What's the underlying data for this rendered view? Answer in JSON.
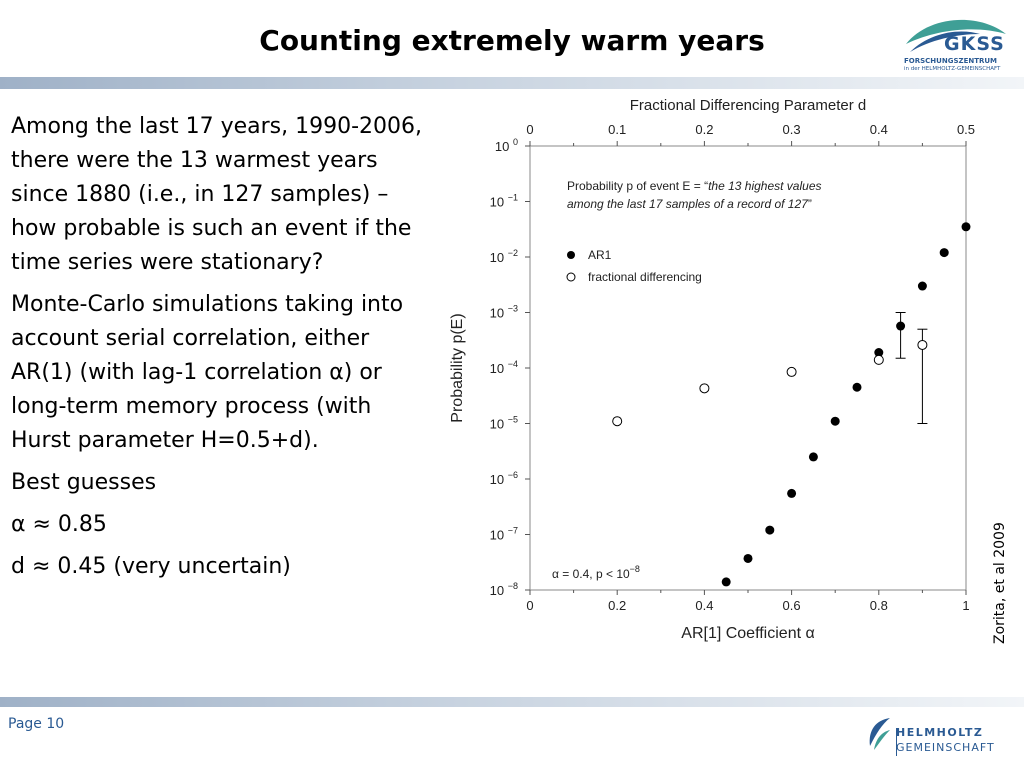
{
  "slide": {
    "title": "Counting extremely warm years",
    "page_label": "Page 10",
    "credit": "Zorita, et al 2009"
  },
  "logos": {
    "gkss": {
      "name": "GKSS",
      "line1": "FORSCHUNGSZENTRUM",
      "line2": "in der HELMHOLTZ-GEMEINSCHAFT"
    },
    "helmholtz": {
      "line1": "HELMHOLTZ",
      "line2": "GEMEINSCHAFT"
    }
  },
  "body": {
    "p1": "Among the last 17 years, 1990-2006, there were the 13 warmest years since 1880 (i.e., in 127 samples) – how probable is such an event if the time series were stationary?",
    "p2": "Monte-Carlo simulations taking into account serial correlation, either AR(1) (with lag-1 correlation α) or long-term memory process (with Hurst parameter H=0.5+d).",
    "p3": "Best guesses",
    "p4": "α ≈ 0.85",
    "p5": "d ≈ 0.45 (very uncertain)"
  },
  "chart_data": {
    "type": "scatter",
    "title": "Fractional Differencing Parameter d",
    "xlabel": "AR[1] Coefficient α",
    "ylabel": "Probability p(E)",
    "x_scale": "linear",
    "y_scale": "log",
    "xlim": [
      0,
      1
    ],
    "ylim": [
      1e-08,
      1
    ],
    "x_ticks": [
      "0",
      "0.2",
      "0.4",
      "0.6",
      "0.8",
      "1"
    ],
    "x_tick_values": [
      0,
      0.2,
      0.4,
      0.6,
      0.8,
      1
    ],
    "top_axis_range": [
      0,
      0.5
    ],
    "top_axis_ticks": [
      "0",
      "0.1",
      "0.2",
      "0.3",
      "0.4",
      "0.5"
    ],
    "top_axis_values": [
      0,
      0.1,
      0.2,
      0.3,
      0.4,
      0.5
    ],
    "y_tick_exponents": [
      0,
      -1,
      -2,
      -3,
      -4,
      -5,
      -6,
      -7,
      -8
    ],
    "y_tick_base": "10",
    "annotation_title": "Probability p of event E = “",
    "annotation_italic_1": "the 13 highest values",
    "annotation_italic_2": "among the last 17 samples of a record of 127",
    "annotation_close": "”",
    "corner_note_prefix": "α = 0.4, p < 10",
    "corner_note_exp": "−8",
    "legend_position": "upper-left",
    "series": [
      {
        "name": "AR1",
        "marker": "filled-circle",
        "color": "#000000",
        "points": [
          {
            "x": 0.45,
            "y": 1.4e-08
          },
          {
            "x": 0.5,
            "y": 3.7e-08
          },
          {
            "x": 0.55,
            "y": 1.2e-07
          },
          {
            "x": 0.6,
            "y": 5.5e-07
          },
          {
            "x": 0.65,
            "y": 2.5e-06
          },
          {
            "x": 0.7,
            "y": 1.1e-05
          },
          {
            "x": 0.75,
            "y": 4.5e-05
          },
          {
            "x": 0.8,
            "y": 0.00019
          },
          {
            "x": 0.85,
            "y": 0.00057,
            "err_low": 0.00015,
            "err_high": 0.001
          },
          {
            "x": 0.9,
            "y": 0.003
          },
          {
            "x": 0.95,
            "y": 0.012
          },
          {
            "x": 1.0,
            "y": 0.035
          }
        ]
      },
      {
        "name": "fractional differencing",
        "marker": "open-circle",
        "color": "#000000",
        "points": [
          {
            "x": 0.2,
            "y": 1.1e-05
          },
          {
            "x": 0.4,
            "y": 4.3e-05
          },
          {
            "x": 0.6,
            "y": 8.5e-05
          },
          {
            "x": 0.8,
            "y": 0.00014
          },
          {
            "x": 0.9,
            "y": 0.00026,
            "err_low": 1e-05,
            "err_high": 0.0005
          }
        ]
      }
    ]
  }
}
